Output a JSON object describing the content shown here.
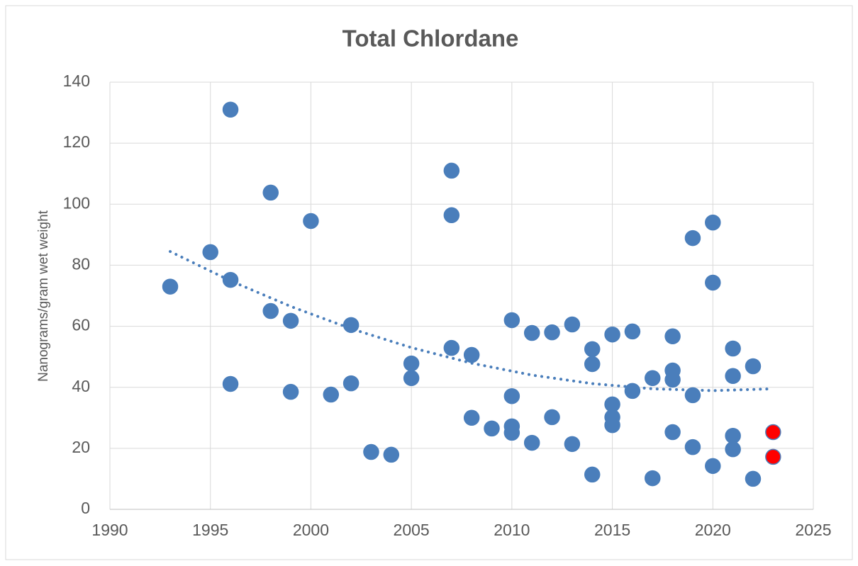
{
  "chart_data": {
    "type": "scatter",
    "title": "Total Chlordane",
    "y_label": "Nanograms/gram wet weight",
    "xlim": [
      1990,
      2025
    ],
    "xticks": [
      1990,
      1995,
      2000,
      2005,
      2010,
      2015,
      2020,
      2025
    ],
    "ylim": [
      0,
      140
    ],
    "yticks": [
      0,
      20,
      40,
      60,
      80,
      100,
      120,
      140
    ],
    "grid": true,
    "series": [
      {
        "mode": "markers",
        "color": "#4a7ebb",
        "x": [
          1993,
          1995,
          1996,
          1996,
          1996,
          1998,
          1998,
          1999,
          1999,
          2000,
          2001,
          2002,
          2002,
          2003,
          2004,
          2005,
          2005,
          2007,
          2007,
          2007,
          2008,
          2008,
          2009,
          2010,
          2010,
          2010,
          2010,
          2011,
          2011,
          2012,
          2012,
          2013,
          2013,
          2014,
          2014,
          2014,
          2015,
          2015,
          2015,
          2015,
          2016,
          2016,
          2017,
          2017,
          2018,
          2018,
          2018,
          2018,
          2019,
          2019,
          2019,
          2020,
          2020,
          2020,
          2021,
          2021,
          2021,
          2021,
          2022,
          2022
        ],
        "values": [
          73,
          84.3,
          131,
          75.2,
          41.1,
          103.8,
          65,
          61.8,
          38.5,
          94.5,
          37.6,
          60.4,
          41.3,
          18.8,
          17.9,
          47.8,
          43,
          111,
          96.4,
          52.9,
          50.6,
          30,
          26.5,
          62,
          37.1,
          27.2,
          25.1,
          57.8,
          21.8,
          58,
          30.2,
          60.6,
          21.4,
          52.5,
          47.6,
          11.4,
          57.3,
          34.4,
          30.2,
          27.6,
          58.3,
          38.8,
          43,
          10.2,
          56.7,
          45.5,
          42.5,
          25.3,
          88.9,
          37.4,
          20.4,
          94,
          74.3,
          14.2,
          52.7,
          43.7,
          24.1,
          19.7,
          46.9,
          10
        ]
      },
      {
        "mode": "markers",
        "color": "#ff0000",
        "x": [
          2023,
          2023
        ],
        "values": [
          25.3,
          17.2
        ]
      },
      {
        "mode": "trendline",
        "color": "#4a7ebb",
        "x": [
          1993,
          1996,
          1999,
          2002,
          2005,
          2008,
          2011,
          2014,
          2017,
          2020,
          2023
        ],
        "values": [
          84.5,
          74.9,
          66.5,
          59.2,
          53,
          47.9,
          44,
          41.2,
          39.5,
          38.9,
          39.5
        ]
      }
    ]
  }
}
